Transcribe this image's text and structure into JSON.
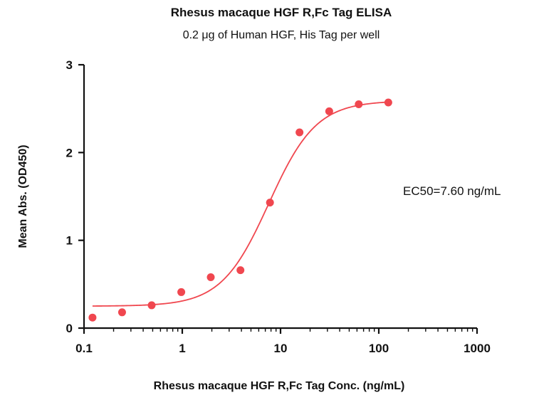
{
  "chart_data": {
    "type": "scatter",
    "title": "Rhesus macaque HGF R,Fc Tag ELISA",
    "subtitle": "0.2 μg of Human HGF, His Tag per well",
    "xlabel": "Rhesus macaque HGF R,Fc Tag Conc. (ng/mL)",
    "ylabel": "Mean Abs. (OD450)",
    "xscale": "log",
    "xlim": [
      0.1,
      1000
    ],
    "ylim": [
      0,
      3
    ],
    "x_ticks": [
      0.1,
      1,
      10,
      100,
      1000
    ],
    "x_tick_labels": [
      "0.1",
      "1",
      "10",
      "100",
      "1000"
    ],
    "y_ticks": [
      0,
      1,
      2,
      3
    ],
    "y_tick_labels": [
      "0",
      "1",
      "2",
      "3"
    ],
    "grid": false,
    "annotation": "EC50=7.60 ng/mL",
    "series": [
      {
        "x": [
          0.122,
          0.244,
          0.488,
          0.977,
          1.95,
          3.91,
          7.81,
          15.6,
          31.3,
          62.5,
          125
        ],
        "y": [
          0.12,
          0.18,
          0.26,
          0.41,
          0.58,
          0.66,
          1.43,
          2.23,
          2.47,
          2.55,
          2.57
        ],
        "color": "#f0474f"
      }
    ],
    "fit": {
      "model": "4PL",
      "bottom": 0.25,
      "top": 2.59,
      "ec50": 7.6,
      "hill": 1.8,
      "color": "#f0474f"
    }
  }
}
